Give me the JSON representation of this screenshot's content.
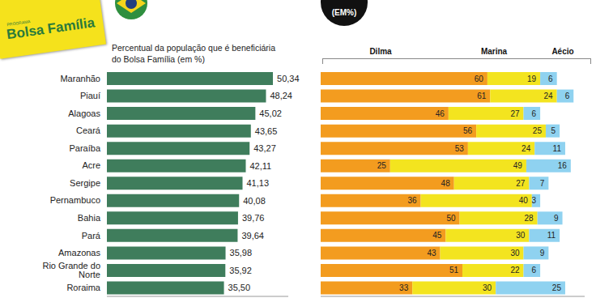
{
  "chart_data": [
    {
      "type": "bar",
      "orientation": "horizontal",
      "title": "Percentual da população que é beneficiária do Bolsa Família (em %)",
      "annotations": [
        "PROGRAMA",
        "Bolsa Família"
      ],
      "categories": [
        "Maranhão",
        "Piauí",
        "Alagoas",
        "Ceará",
        "Paraíba",
        "Acre",
        "Sergipe",
        "Pernambuco",
        "Bahia",
        "Pará",
        "Amazonas",
        "Rio Grande do Norte",
        "Roraima"
      ],
      "values": [
        50.34,
        48.24,
        45.02,
        43.65,
        43.27,
        42.11,
        41.13,
        40.08,
        39.76,
        39.64,
        35.98,
        35.92,
        35.5
      ],
      "value_labels": [
        "50,34",
        "48,24",
        "45,02",
        "43,65",
        "43,27",
        "42,11",
        "41,13",
        "40,08",
        "39,76",
        "39,64",
        "35,98",
        "35,92",
        "35,50"
      ],
      "color": "#3f7d5c",
      "xlim": [
        0,
        55
      ],
      "xticks": [],
      "tick_labels": "y",
      "data_labels": true
    },
    {
      "type": "bar",
      "orientation": "horizontal",
      "stacked": true,
      "title": "(EM%)",
      "categories": [
        "Maranhão",
        "Piauí",
        "Alagoas",
        "Ceará",
        "Paraíba",
        "Acre",
        "Sergipe",
        "Pernambuco",
        "Bahia",
        "Pará",
        "Amazonas",
        "Rio Grande do Norte",
        "Roraima"
      ],
      "series": [
        {
          "name": "Dilma",
          "color": "#f39c1f",
          "values": [
            60,
            61,
            46,
            56,
            53,
            25,
            48,
            36,
            50,
            45,
            43,
            51,
            33
          ]
        },
        {
          "name": "Marina",
          "color": "#f3e41f",
          "values": [
            19,
            24,
            27,
            25,
            24,
            49,
            27,
            40,
            28,
            30,
            30,
            22,
            30
          ]
        },
        {
          "name": "Aécio",
          "color": "#8fd2f0",
          "values": [
            6,
            6,
            6,
            5,
            11,
            16,
            7,
            3,
            9,
            11,
            9,
            6,
            25
          ]
        }
      ],
      "xlim": [
        0,
        95
      ],
      "xticks": [],
      "tick_labels": false,
      "data_labels": true
    }
  ]
}
